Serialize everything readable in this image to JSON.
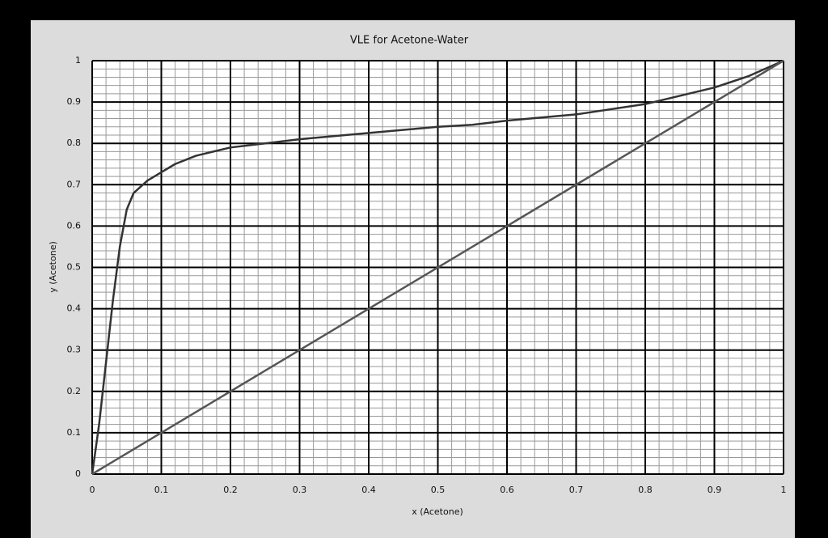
{
  "chart_data": {
    "type": "line",
    "title": "VLE for Acetone-Water",
    "x_label": "x (Acetone)",
    "y_label": "y (Acetone)",
    "series": [
      {
        "x": [
          0,
          0.01,
          0.02,
          0.03,
          0.04,
          0.05,
          0.06,
          0.08,
          0.1,
          0.12,
          0.15,
          0.2,
          0.25,
          0.3,
          0.4,
          0.5,
          0.55,
          0.6,
          0.7,
          0.8,
          0.9,
          0.95,
          1
        ],
        "values": [
          0,
          0.12,
          0.27,
          0.42,
          0.55,
          0.64,
          0.68,
          0.71,
          0.73,
          0.75,
          0.77,
          0.79,
          0.8,
          0.81,
          0.825,
          0.84,
          0.845,
          0.855,
          0.87,
          0.895,
          0.935,
          0.963,
          1
        ],
        "color": "#333333"
      },
      {
        "x": [
          0,
          1
        ],
        "values": [
          0,
          1
        ],
        "color": "#555555"
      }
    ],
    "xlim": [
      0,
      1
    ],
    "ylim": [
      0,
      1
    ],
    "xticks": [
      0,
      0.1,
      0.2,
      0.3,
      0.4,
      0.5,
      0.6,
      0.7,
      0.8,
      0.9,
      1
    ],
    "yticks": [
      0,
      0.1,
      0.2,
      0.3,
      0.4,
      0.5,
      0.6,
      0.7,
      0.8,
      0.9,
      1
    ],
    "grid": true,
    "minor_divisions": 5
  }
}
